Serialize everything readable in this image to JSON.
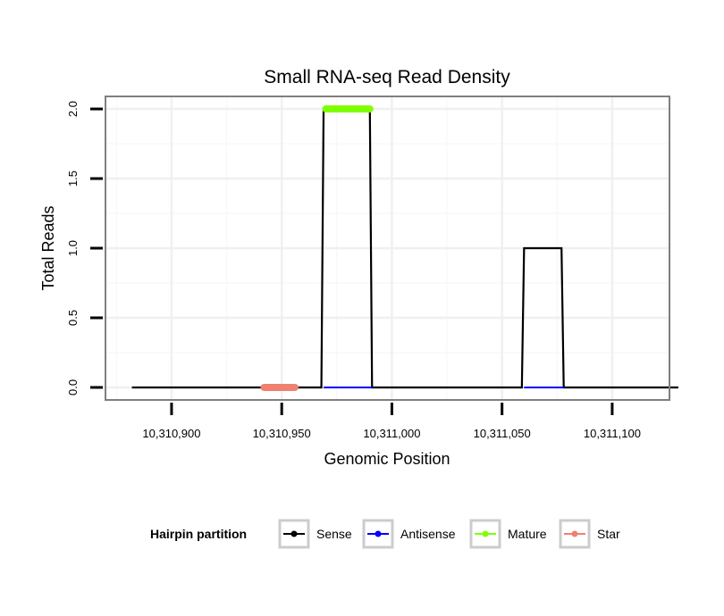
{
  "chart_data": {
    "type": "line",
    "title": "Small RNA-seq Read Density",
    "xlabel": "Genomic Position",
    "ylabel": "Total Reads",
    "xlim": [
      10310870,
      10311126
    ],
    "ylim": [
      -0.09,
      2.09
    ],
    "x_ticks": [
      10310900,
      10310950,
      10311000,
      10311050,
      10311100
    ],
    "x_tick_labels": [
      "10,310,900",
      "10,310,950",
      "10,311,000",
      "10,311,050",
      "10,311,100"
    ],
    "y_ticks": [
      0,
      0.5,
      1,
      1.5,
      2
    ],
    "y_tick_labels": [
      "0.0",
      "0.5",
      "1.0",
      "1.5",
      "2.0"
    ],
    "grid": true,
    "series": [
      {
        "name": "Sense",
        "color": "#000000",
        "x": [
          10310882,
          10310968,
          10310969,
          10310990,
          10310991,
          10311059,
          10311060,
          10311077,
          10311078,
          10311130
        ],
        "y": [
          0,
          0,
          2,
          2,
          0,
          0,
          1,
          1,
          0,
          0
        ]
      },
      {
        "name": "Antisense",
        "color": "#0000ff",
        "x": [
          10310969,
          10310991,
          10311060,
          10311078
        ],
        "y": [
          0,
          0,
          0,
          0
        ],
        "segments": [
          [
            0,
            1
          ],
          [
            2,
            3
          ]
        ]
      },
      {
        "name": "Mature",
        "color": "#7fff00",
        "x": [
          10310970,
          10310990
        ],
        "y": [
          2,
          2
        ]
      },
      {
        "name": "Star",
        "color": "#f08070",
        "x": [
          10310942,
          10310956
        ],
        "y": [
          0,
          0
        ]
      }
    ],
    "legend": {
      "title": "Hairpin partition",
      "placement": "bottom",
      "entries": [
        "Sense",
        "Antisense",
        "Mature",
        "Star"
      ]
    }
  }
}
